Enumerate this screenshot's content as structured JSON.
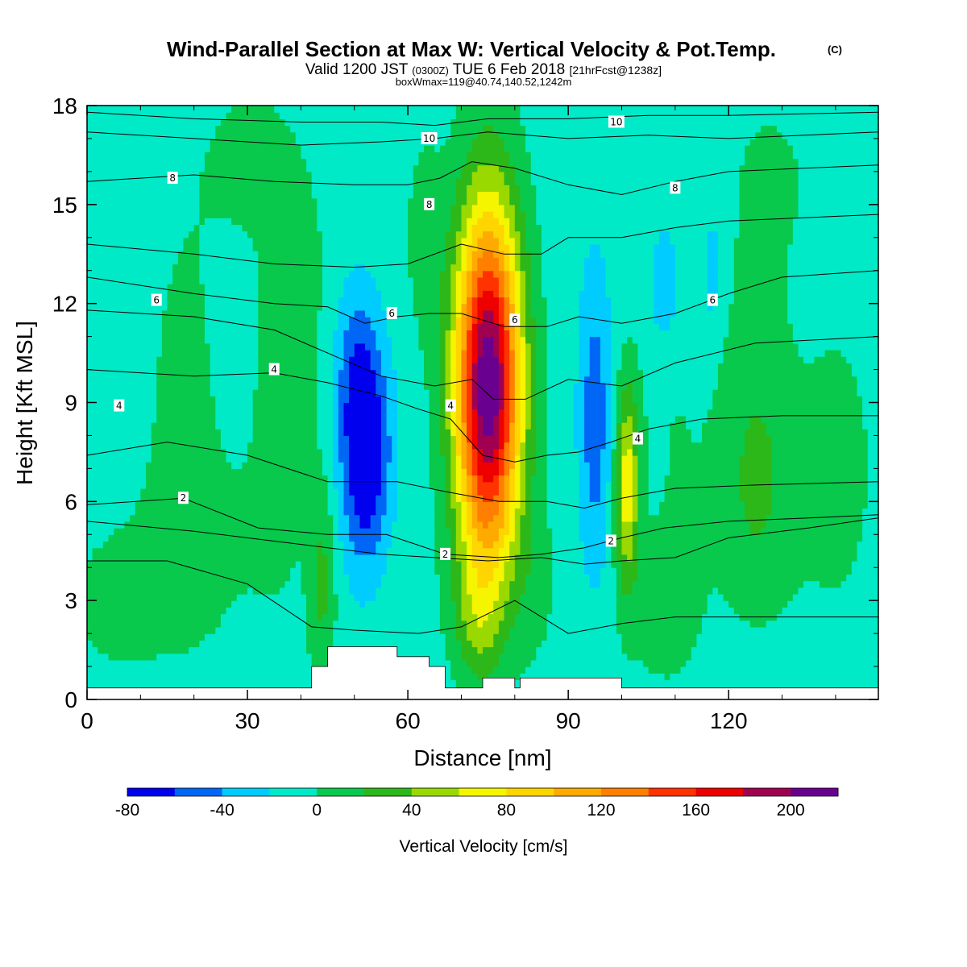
{
  "header": {
    "title": "Wind-Parallel Section at Max W: Vertical Velocity & Pot.Temp.",
    "title_mark": "(C)",
    "subtitle_valid": "Valid 1200 JST",
    "subtitle_z": "(0300Z)",
    "subtitle_date": "TUE 6 Feb 2018",
    "subtitle_fcst": "[21hrFcst@1238z]",
    "box_line": "boxWmax=119@40.74,140.52,1242m"
  },
  "chart_data": {
    "type": "heatmap",
    "title": "Wind-Parallel Section at Max W: Vertical Velocity & Pot.Temp.",
    "xlabel": "Distance [nm]",
    "ylabel": "Height [Kft MSL]",
    "xlim": [
      0,
      148
    ],
    "ylim": [
      0,
      18
    ],
    "x_ticks": [
      0,
      30,
      60,
      90,
      120
    ],
    "y_ticks": [
      0,
      3,
      6,
      9,
      12,
      15,
      18
    ],
    "colorbar": {
      "title": "Vertical Velocity [cm/s]",
      "levels": [
        -80,
        -60,
        -40,
        -20,
        0,
        20,
        40,
        60,
        80,
        100,
        120,
        140,
        160,
        180,
        200,
        220
      ],
      "labels": [
        "-80",
        "-40",
        "0",
        "40",
        "80",
        "120",
        "160",
        "200"
      ],
      "colors": [
        "#0000ef",
        "#0066f5",
        "#00ccff",
        "#00eac8",
        "#08c94c",
        "#2db81a",
        "#99d900",
        "#f5f500",
        "#ffd500",
        "#ffaa00",
        "#ff7f00",
        "#ff3300",
        "#ee0000",
        "#a00050",
        "#6a0090"
      ],
      "background_value": -10
    },
    "vertical_velocity_cells": [
      {
        "x": 5,
        "z": 3.0,
        "sx": 10,
        "sz": 2.5,
        "v": 15
      },
      {
        "x": 18,
        "z": 9.0,
        "sx": 8,
        "sz": 7.0,
        "v": 14
      },
      {
        "x": 22,
        "z": 4.5,
        "sx": 12,
        "sz": 3.0,
        "v": 12
      },
      {
        "x": 40,
        "z": 12.0,
        "sx": 8,
        "sz": 5.0,
        "v": 13
      },
      {
        "x": 36,
        "z": 7.0,
        "sx": 6,
        "sz": 5.0,
        "v": 12
      },
      {
        "x": 44,
        "z": 3.5,
        "sx": 2.5,
        "sz": 3.0,
        "v": 34
      },
      {
        "x": 52,
        "z": 7.5,
        "sx": 4.5,
        "sz": 3.2,
        "v": -82
      },
      {
        "x": 50,
        "z": 10.5,
        "sx": 4,
        "sz": 2.5,
        "v": -28
      },
      {
        "x": 63,
        "z": 14.0,
        "sx": 4,
        "sz": 3.5,
        "v": 16
      },
      {
        "x": 75,
        "z": 9.5,
        "sx": 6.2,
        "sz": 5.5,
        "v": 228
      },
      {
        "x": 73,
        "z": 2.5,
        "sx": 4.5,
        "sz": 2.0,
        "v": 32
      },
      {
        "x": 95,
        "z": 8.5,
        "sx": 3,
        "sz": 4.5,
        "v": -42
      },
      {
        "x": 101,
        "z": 6.5,
        "sx": 2.2,
        "sz": 3.0,
        "v": 80
      },
      {
        "x": 108,
        "z": 12.5,
        "sx": 2.5,
        "sz": 1.8,
        "v": -30
      },
      {
        "x": 117,
        "z": 13.0,
        "sx": 1.6,
        "sz": 1.5,
        "v": -30
      },
      {
        "x": 110,
        "z": 8.0,
        "sx": 8,
        "sz": 5.0,
        "v": 10
      },
      {
        "x": 125,
        "z": 6.0,
        "sx": 7,
        "sz": 3.5,
        "v": 26
      },
      {
        "x": 125,
        "z": 10.0,
        "sx": 6,
        "sz": 4.5,
        "v": 15
      },
      {
        "x": 108,
        "z": 2.5,
        "sx": 8,
        "sz": 2.5,
        "v": 15
      },
      {
        "x": 140,
        "z": 7.0,
        "sx": 10,
        "sz": 6.0,
        "v": 14
      },
      {
        "x": 30,
        "z": 16.5,
        "sx": 10,
        "sz": 3.0,
        "v": 12
      },
      {
        "x": 128,
        "z": 16.0,
        "sx": 10,
        "sz": 3.0,
        "v": 11
      },
      {
        "x": 84,
        "z": 3.5,
        "sx": 4,
        "sz": 2.5,
        "v": 14
      },
      {
        "x": 60,
        "z": 3.0,
        "sx": 4,
        "sz": 2.5,
        "v": 8
      }
    ],
    "potential_temperature_contours": [
      {
        "theta": 0,
        "label": "",
        "pts": [
          [
            0,
            4.2
          ],
          [
            15,
            4.2
          ],
          [
            30,
            3.5
          ],
          [
            42,
            2.2
          ],
          [
            50,
            2.1
          ],
          [
            62,
            2.0
          ],
          [
            70,
            2.2
          ],
          [
            80,
            3.0
          ],
          [
            90,
            2.0
          ],
          [
            100,
            2.3
          ],
          [
            110,
            2.5
          ],
          [
            125,
            2.5
          ],
          [
            148,
            2.5
          ]
        ]
      },
      {
        "theta": 1,
        "label": "",
        "pts": [
          [
            0,
            5.4
          ],
          [
            20,
            5.1
          ],
          [
            35,
            4.8
          ],
          [
            45,
            4.6
          ],
          [
            55,
            4.4
          ],
          [
            65,
            4.3
          ],
          [
            75,
            4.2
          ],
          [
            85,
            4.3
          ],
          [
            93,
            4.1
          ],
          [
            100,
            4.2
          ],
          [
            110,
            4.3
          ],
          [
            120,
            4.9
          ],
          [
            135,
            5.2
          ],
          [
            148,
            5.5
          ]
        ]
      },
      {
        "theta": 2,
        "label": "2",
        "pts": [
          [
            0,
            5.9
          ],
          [
            18,
            6.1
          ],
          [
            32,
            5.2
          ],
          [
            45,
            5.0
          ],
          [
            56,
            5.0
          ],
          [
            67,
            4.4
          ],
          [
            77,
            4.3
          ],
          [
            85,
            4.4
          ],
          [
            93,
            4.6
          ],
          [
            100,
            4.9
          ],
          [
            108,
            5.2
          ],
          [
            120,
            5.4
          ],
          [
            135,
            5.5
          ],
          [
            148,
            5.6
          ]
        ]
      },
      {
        "theta": 3,
        "label": "",
        "pts": [
          [
            0,
            7.4
          ],
          [
            15,
            7.8
          ],
          [
            30,
            7.4
          ],
          [
            45,
            6.6
          ],
          [
            58,
            6.6
          ],
          [
            67,
            6.3
          ],
          [
            77,
            6.0
          ],
          [
            86,
            6.0
          ],
          [
            93,
            5.8
          ],
          [
            100,
            6.1
          ],
          [
            110,
            6.4
          ],
          [
            125,
            6.5
          ],
          [
            148,
            6.6
          ]
        ]
      },
      {
        "theta": 4,
        "label": "4",
        "pts": [
          [
            0,
            10.0
          ],
          [
            20,
            9.8
          ],
          [
            35,
            9.9
          ],
          [
            45,
            9.6
          ],
          [
            55,
            9.2
          ],
          [
            62,
            8.8
          ],
          [
            68,
            8.5
          ],
          [
            74,
            7.4
          ],
          [
            80,
            7.2
          ],
          [
            86,
            7.4
          ],
          [
            92,
            7.5
          ],
          [
            98,
            7.8
          ],
          [
            105,
            8.2
          ],
          [
            115,
            8.5
          ],
          [
            130,
            8.6
          ],
          [
            148,
            8.6
          ]
        ]
      },
      {
        "theta": 5,
        "label": "",
        "pts": [
          [
            0,
            11.8
          ],
          [
            20,
            11.6
          ],
          [
            35,
            11.2
          ],
          [
            45,
            10.5
          ],
          [
            55,
            9.8
          ],
          [
            65,
            9.5
          ],
          [
            72,
            9.7
          ],
          [
            76,
            9.1
          ],
          [
            82,
            9.1
          ],
          [
            90,
            9.7
          ],
          [
            100,
            9.5
          ],
          [
            110,
            10.2
          ],
          [
            125,
            10.8
          ],
          [
            148,
            11.0
          ]
        ]
      },
      {
        "theta": 6,
        "label": "6",
        "pts": [
          [
            0,
            12.8
          ],
          [
            20,
            12.3
          ],
          [
            35,
            12.0
          ],
          [
            45,
            11.9
          ],
          [
            52,
            11.4
          ],
          [
            58,
            11.6
          ],
          [
            64,
            11.7
          ],
          [
            70,
            11.7
          ],
          [
            78,
            11.3
          ],
          [
            86,
            11.3
          ],
          [
            92,
            11.6
          ],
          [
            100,
            11.4
          ],
          [
            110,
            11.7
          ],
          [
            120,
            12.3
          ],
          [
            130,
            12.8
          ],
          [
            148,
            13.0
          ]
        ]
      },
      {
        "theta": 7,
        "label": "",
        "pts": [
          [
            0,
            13.8
          ],
          [
            20,
            13.5
          ],
          [
            35,
            13.2
          ],
          [
            50,
            13.1
          ],
          [
            60,
            13.2
          ],
          [
            70,
            13.8
          ],
          [
            78,
            13.5
          ],
          [
            85,
            13.5
          ],
          [
            90,
            14.0
          ],
          [
            100,
            14.0
          ],
          [
            110,
            14.3
          ],
          [
            120,
            14.5
          ],
          [
            148,
            14.7
          ]
        ]
      },
      {
        "theta": 8,
        "label": "8",
        "pts": [
          [
            0,
            15.7
          ],
          [
            20,
            15.9
          ],
          [
            35,
            15.7
          ],
          [
            50,
            15.6
          ],
          [
            60,
            15.6
          ],
          [
            66,
            15.8
          ],
          [
            72,
            16.3
          ],
          [
            80,
            16.1
          ],
          [
            90,
            15.6
          ],
          [
            100,
            15.3
          ],
          [
            110,
            15.7
          ],
          [
            120,
            16.0
          ],
          [
            148,
            16.2
          ]
        ]
      },
      {
        "theta": 9,
        "label": "",
        "pts": [
          [
            0,
            17.2
          ],
          [
            20,
            17.0
          ],
          [
            40,
            16.8
          ],
          [
            55,
            16.9
          ],
          [
            65,
            17.0
          ],
          [
            75,
            17.2
          ],
          [
            90,
            17.0
          ],
          [
            105,
            17.1
          ],
          [
            120,
            17.0
          ],
          [
            148,
            17.2
          ]
        ]
      },
      {
        "theta": 10,
        "label": "10",
        "pts": [
          [
            0,
            17.8
          ],
          [
            20,
            17.6
          ],
          [
            40,
            17.5
          ],
          [
            55,
            17.5
          ],
          [
            65,
            17.4
          ],
          [
            75,
            17.6
          ],
          [
            90,
            17.6
          ],
          [
            105,
            17.7
          ],
          [
            120,
            17.7
          ],
          [
            148,
            17.8
          ]
        ]
      }
    ],
    "contour_labels": [
      {
        "text": "8",
        "x": 16,
        "z": 15.8
      },
      {
        "text": "10",
        "x": 64,
        "z": 17.0
      },
      {
        "text": "10",
        "x": 99,
        "z": 17.5
      },
      {
        "text": "8",
        "x": 64,
        "z": 15.0
      },
      {
        "text": "8",
        "x": 110,
        "z": 15.5
      },
      {
        "text": "6",
        "x": 13,
        "z": 12.1
      },
      {
        "text": "6",
        "x": 57,
        "z": 11.7
      },
      {
        "text": "6",
        "x": 80,
        "z": 11.5
      },
      {
        "text": "6",
        "x": 117,
        "z": 12.1
      },
      {
        "text": "4",
        "x": 35,
        "z": 10.0
      },
      {
        "text": "4",
        "x": 6,
        "z": 8.9
      },
      {
        "text": "4",
        "x": 68,
        "z": 8.9
      },
      {
        "text": "4",
        "x": 103,
        "z": 7.9
      },
      {
        "text": "2",
        "x": 18,
        "z": 6.1
      },
      {
        "text": "2",
        "x": 67,
        "z": 4.4
      },
      {
        "text": "2",
        "x": 98,
        "z": 4.8
      }
    ],
    "terrain": [
      [
        0,
        0.35
      ],
      [
        42,
        0.35
      ],
      [
        42,
        1.0
      ],
      [
        45,
        1.0
      ],
      [
        45,
        1.6
      ],
      [
        58,
        1.6
      ],
      [
        58,
        1.3
      ],
      [
        64,
        1.3
      ],
      [
        64,
        1.0
      ],
      [
        67,
        1.0
      ],
      [
        67,
        0.35
      ],
      [
        74,
        0.35
      ],
      [
        74,
        0.65
      ],
      [
        80,
        0.65
      ],
      [
        80,
        0.35
      ],
      [
        81,
        0.35
      ],
      [
        81,
        0.65
      ],
      [
        100,
        0.65
      ],
      [
        100,
        0.35
      ],
      [
        148,
        0.35
      ]
    ]
  }
}
